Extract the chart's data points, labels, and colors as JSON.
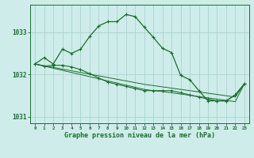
{
  "xlabel": "Graphe pression niveau de la mer (hPa)",
  "bg_color": "#ceecea",
  "grid_color": "#aad4d0",
  "line_color": "#1a6e2e",
  "x": [
    0,
    1,
    2,
    3,
    4,
    5,
    6,
    7,
    8,
    9,
    10,
    11,
    12,
    13,
    14,
    15,
    16,
    17,
    18,
    19,
    20,
    21,
    22,
    23
  ],
  "y_main": [
    1032.25,
    1032.4,
    1032.25,
    1032.6,
    1032.5,
    1032.6,
    1032.9,
    1033.15,
    1033.25,
    1033.25,
    1033.42,
    1033.37,
    1033.12,
    1032.88,
    1032.62,
    1032.52,
    1031.98,
    1031.88,
    1031.62,
    1031.38,
    1031.38,
    1031.38,
    1031.52,
    1031.78
  ],
  "y_low": [
    1032.25,
    1032.2,
    1032.22,
    1032.22,
    1032.18,
    1032.12,
    1032.02,
    1031.92,
    1031.82,
    1031.77,
    1031.72,
    1031.67,
    1031.62,
    1031.62,
    1031.62,
    1031.62,
    1031.57,
    1031.52,
    1031.47,
    1031.42,
    1031.38,
    1031.38,
    1031.52,
    1031.78
  ],
  "y_trend1": [
    1032.25,
    1032.2,
    1032.15,
    1032.1,
    1032.05,
    1032.0,
    1031.95,
    1031.9,
    1031.85,
    1031.8,
    1031.75,
    1031.7,
    1031.65,
    1031.62,
    1031.6,
    1031.57,
    1031.54,
    1031.51,
    1031.48,
    1031.45,
    1031.42,
    1031.39,
    1031.36,
    1031.78
  ],
  "y_trend2": [
    1032.25,
    1032.21,
    1032.17,
    1032.13,
    1032.09,
    1032.05,
    1032.01,
    1031.97,
    1031.93,
    1031.89,
    1031.85,
    1031.81,
    1031.77,
    1031.74,
    1031.71,
    1031.68,
    1031.65,
    1031.62,
    1031.59,
    1031.56,
    1031.53,
    1031.5,
    1031.47,
    1031.78
  ],
  "ylim": [
    1030.85,
    1033.65
  ],
  "yticks": [
    1031,
    1032,
    1033
  ],
  "xlim": [
    -0.5,
    23.5
  ]
}
